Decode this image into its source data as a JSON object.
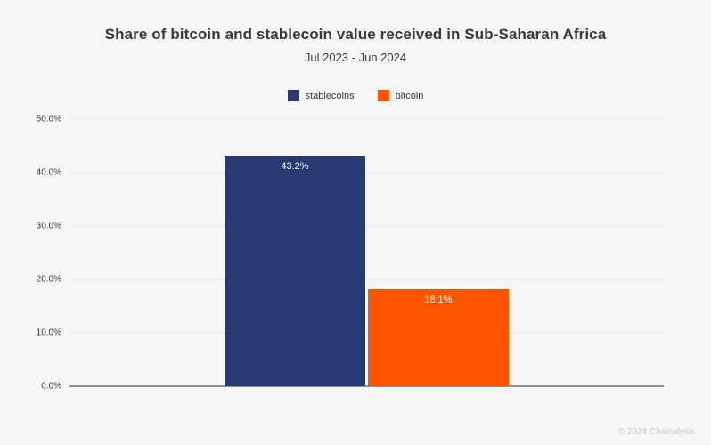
{
  "header": {
    "title": "Share of bitcoin and stablecoin value received in Sub-Saharan Africa",
    "subtitle": "Jul 2023 - Jun 2024"
  },
  "footer": {
    "copyright": "© 2024 Chainalysis"
  },
  "chart_data": {
    "type": "bar",
    "title": "Share of bitcoin and stablecoin value received in Sub-Saharan Africa",
    "subtitle": "Jul 2023 - Jun 2024",
    "categories": [
      "stablecoins",
      "bitcoin"
    ],
    "series": [
      {
        "name": "stablecoins",
        "value": 43.2,
        "label": "43.2%",
        "color": "#283a72"
      },
      {
        "name": "bitcoin",
        "value": 18.1,
        "label": "18.1%",
        "color": "#ff5500"
      }
    ],
    "ylim": [
      0,
      50
    ],
    "yticks": [
      0,
      10,
      20,
      30,
      40,
      50
    ],
    "ytick_labels": [
      "0.0%",
      "10.0%",
      "20.0%",
      "30.0%",
      "40.0%",
      "50.0%"
    ],
    "grid": true,
    "legend_position": "top",
    "background_color": "#f6f6f6",
    "gridline_color": "#e7e7e7",
    "axis_color": "#8f8f8f"
  }
}
